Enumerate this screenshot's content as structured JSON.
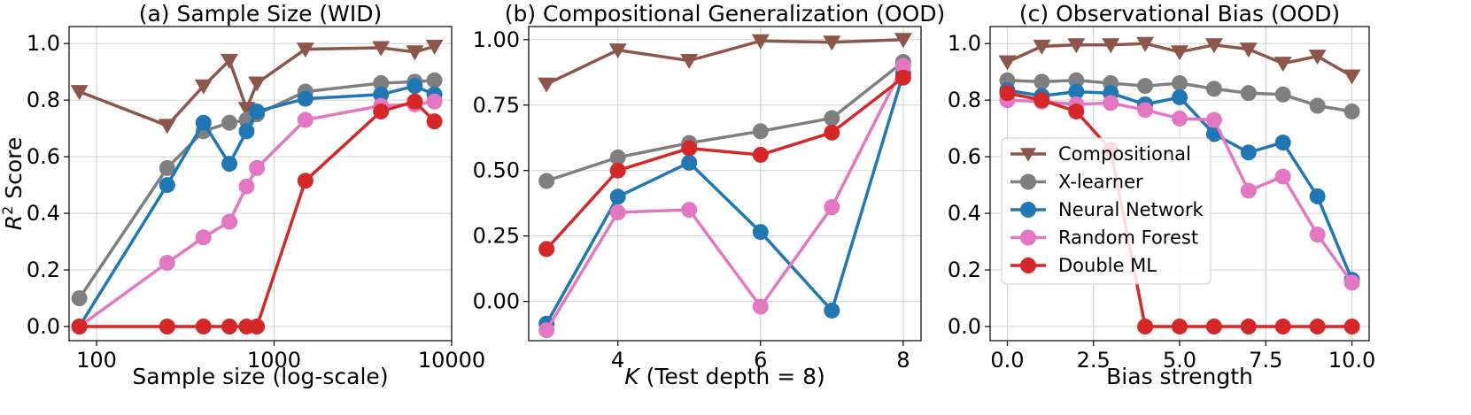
{
  "chart_data": [
    {
      "type": "line",
      "title": "(a) Sample Size (WID)",
      "xlabel": "Sample size (log-scale)",
      "ylabel": "R² Score",
      "xscale": "log",
      "xlim": [
        70,
        10000
      ],
      "ylim": [
        -0.05,
        1.06
      ],
      "xticks": [
        100,
        1000,
        10000
      ],
      "xtick_labels": [
        "100",
        "1000",
        "10000"
      ],
      "yticks": [
        0.0,
        0.2,
        0.4,
        0.6,
        0.8,
        1.0
      ],
      "ytick_labels": [
        "0.0",
        "0.2",
        "0.4",
        "0.6",
        "0.8",
        "1.0"
      ],
      "series": [
        {
          "name": "Compositional",
          "x": [
            80,
            250,
            400,
            560,
            700,
            800,
            1500,
            4000,
            6200,
            8000
          ],
          "values": [
            0.83,
            0.71,
            0.85,
            0.94,
            0.77,
            0.86,
            0.98,
            0.985,
            0.97,
            0.99
          ]
        },
        {
          "name": "X-learner",
          "x": [
            80,
            250,
            400,
            560,
            700,
            800,
            1500,
            4000,
            6200,
            8000
          ],
          "values": [
            0.1,
            0.56,
            0.69,
            0.72,
            0.73,
            0.75,
            0.83,
            0.86,
            0.865,
            0.87
          ]
        },
        {
          "name": "Neural Network",
          "x": [
            80,
            250,
            400,
            560,
            700,
            800,
            1500,
            4000,
            6200,
            8000
          ],
          "values": [
            0.0,
            0.5,
            0.72,
            0.575,
            0.69,
            0.76,
            0.805,
            0.82,
            0.85,
            0.82
          ]
        },
        {
          "name": "Random Forest",
          "x": [
            80,
            250,
            400,
            560,
            700,
            800,
            1500,
            4000,
            6200,
            8000
          ],
          "values": [
            0.0,
            0.225,
            0.315,
            0.37,
            0.495,
            0.56,
            0.73,
            0.78,
            0.785,
            0.795
          ]
        },
        {
          "name": "Double ML",
          "x": [
            80,
            250,
            400,
            560,
            700,
            800,
            1500,
            4000,
            6200,
            8000
          ],
          "values": [
            0.0,
            0.0,
            0.0,
            0.0,
            0.0,
            0.0,
            0.515,
            0.76,
            0.795,
            0.725
          ]
        }
      ]
    },
    {
      "type": "line",
      "title": "(b) Compositional Generalization (OOD)",
      "xlabel_italic": "K",
      "xlabel_rest": " (Test depth = 8)",
      "ylabel": "",
      "xlim": [
        2.75,
        8.25
      ],
      "ylim": [
        -0.15,
        1.05
      ],
      "xticks": [
        4,
        6,
        8
      ],
      "xtick_labels": [
        "4",
        "6",
        "8"
      ],
      "yticks": [
        0.0,
        0.25,
        0.5,
        0.75,
        1.0
      ],
      "ytick_labels": [
        "0.00",
        "0.25",
        "0.50",
        "0.75",
        "1.00"
      ],
      "series": [
        {
          "name": "Compositional",
          "x": [
            3,
            4,
            5,
            6,
            7,
            8
          ],
          "values": [
            0.83,
            0.96,
            0.92,
            0.995,
            0.99,
            1.0
          ]
        },
        {
          "name": "X-learner",
          "x": [
            3,
            4,
            5,
            6,
            7,
            8
          ],
          "values": [
            0.46,
            0.55,
            0.605,
            0.65,
            0.7,
            0.915
          ]
        },
        {
          "name": "Neural Network",
          "x": [
            3,
            4,
            5,
            6,
            7,
            8
          ],
          "values": [
            -0.085,
            0.4,
            0.53,
            0.265,
            -0.035,
            0.87
          ]
        },
        {
          "name": "Random Forest",
          "x": [
            3,
            4,
            5,
            6,
            7,
            8
          ],
          "values": [
            -0.11,
            0.34,
            0.35,
            -0.02,
            0.36,
            0.9
          ]
        },
        {
          "name": "Double ML",
          "x": [
            3,
            4,
            5,
            6,
            7,
            8
          ],
          "values": [
            0.2,
            0.5,
            0.585,
            0.56,
            0.645,
            0.855
          ]
        }
      ]
    },
    {
      "type": "line",
      "title": "(c) Observational Bias (OOD)",
      "xlabel": "Bias strength",
      "ylabel": "",
      "xlim": [
        -0.5,
        10.5
      ],
      "ylim": [
        -0.05,
        1.06
      ],
      "xticks": [
        0.0,
        2.5,
        5.0,
        7.5,
        10.0
      ],
      "xtick_labels": [
        "0.0",
        "2.5",
        "5.0",
        "7.5",
        "10.0"
      ],
      "yticks": [
        0.0,
        0.2,
        0.4,
        0.6,
        0.8,
        1.0
      ],
      "ytick_labels": [
        "0.0",
        "0.2",
        "0.4",
        "0.6",
        "0.8",
        "1.0"
      ],
      "legend": "center-left",
      "series": [
        {
          "name": "Compositional",
          "x": [
            0,
            1,
            2,
            3,
            4,
            5,
            6,
            7,
            8,
            9,
            10
          ],
          "values": [
            0.935,
            0.99,
            0.995,
            0.995,
            1.0,
            0.97,
            0.995,
            0.98,
            0.93,
            0.955,
            0.885
          ]
        },
        {
          "name": "X-learner",
          "x": [
            0,
            1,
            2,
            3,
            4,
            5,
            6,
            7,
            8,
            9,
            10
          ],
          "values": [
            0.87,
            0.865,
            0.87,
            0.86,
            0.85,
            0.86,
            0.84,
            0.825,
            0.82,
            0.78,
            0.76
          ]
        },
        {
          "name": "Neural Network",
          "x": [
            0,
            1,
            2,
            3,
            4,
            5,
            6,
            7,
            8,
            9,
            10
          ],
          "values": [
            0.835,
            0.815,
            0.83,
            0.825,
            0.785,
            0.81,
            0.68,
            0.615,
            0.65,
            0.46,
            0.165
          ]
        },
        {
          "name": "Random Forest",
          "x": [
            0,
            1,
            2,
            3,
            4,
            5,
            6,
            7,
            8,
            9,
            10
          ],
          "values": [
            0.8,
            0.795,
            0.785,
            0.79,
            0.765,
            0.735,
            0.73,
            0.48,
            0.53,
            0.325,
            0.155
          ]
        },
        {
          "name": "Double ML",
          "x": [
            0,
            1,
            2,
            3,
            4,
            5,
            6,
            7,
            8,
            9,
            10
          ],
          "values": [
            0.825,
            0.8,
            0.76,
            0.625,
            0.0,
            0.0,
            0.0,
            0.0,
            0.0,
            0.0,
            0.0
          ]
        }
      ]
    }
  ],
  "legend_entries": [
    "Compositional",
    "X-learner",
    "Neural Network",
    "Random Forest",
    "Double ML"
  ],
  "colors": {
    "Compositional": "#8c564b",
    "X-learner": "#7f7f7f",
    "Neural Network": "#1f77b4",
    "Random Forest": "#e377c2",
    "Double ML": "#d62728"
  },
  "markers": {
    "Compositional": "triangle-down",
    "X-learner": "circle",
    "Neural Network": "circle",
    "Random Forest": "circle",
    "Double ML": "circle"
  }
}
